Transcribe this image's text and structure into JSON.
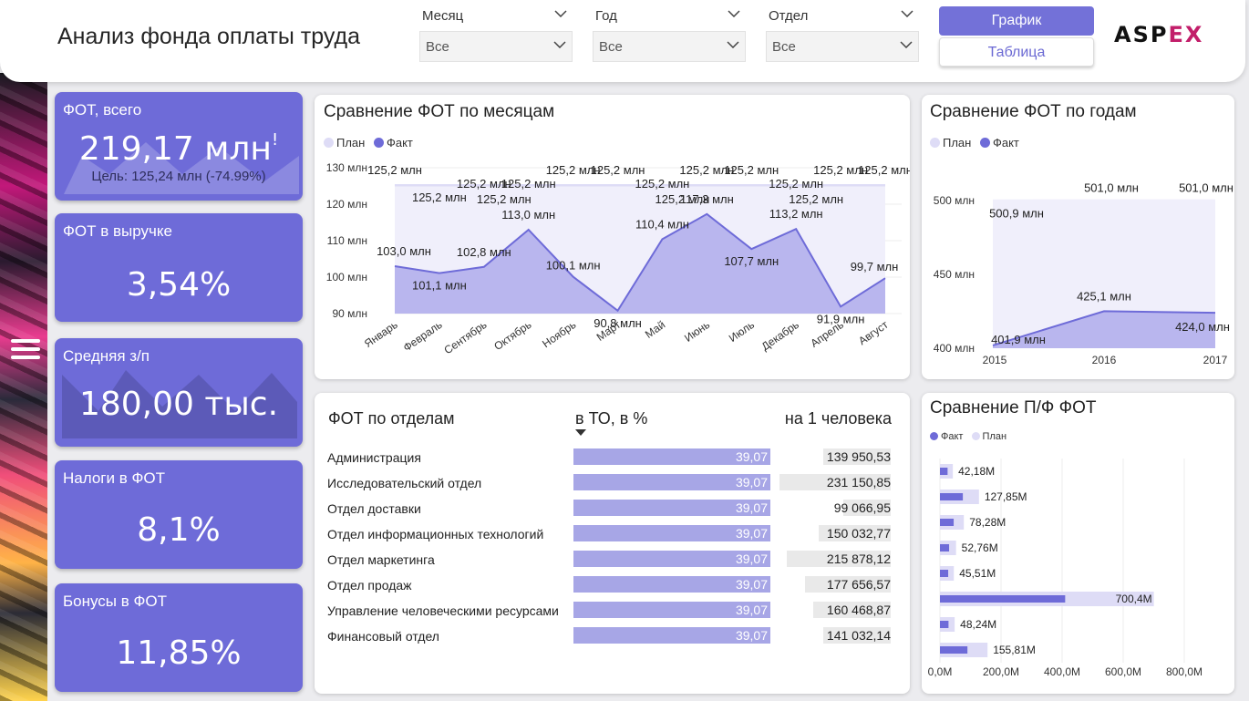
{
  "header": {
    "title": "Анализ фонда оплаты труда",
    "filters": [
      {
        "label": "Месяц",
        "value": "Все"
      },
      {
        "label": "Год",
        "value": "Все"
      },
      {
        "label": "Отдел",
        "value": "Все"
      }
    ],
    "graph_button": "График",
    "table_button": "Таблица",
    "logo_main": "ASP",
    "logo_accent": "EX"
  },
  "kpis": [
    {
      "label": "ФОТ, всего",
      "value": "219,17 млн",
      "sub": "Цель: 125,24 млн (-74.99%)",
      "alert": "!"
    },
    {
      "label": "ФОТ в выручке",
      "value": "3,54%"
    },
    {
      "label": "Средняя з/п",
      "value": "180,00 тыс."
    },
    {
      "label": "Налоги в ФОТ",
      "value": "8,1%"
    },
    {
      "label": "Бонусы в ФОТ",
      "value": "11,85%"
    }
  ],
  "colors": {
    "accent": "#6e6bd8",
    "plan": "#dedcf6",
    "fact": "#6e6bd8",
    "fact_area": "#b9b6ee"
  },
  "chart_data": [
    {
      "id": "monthly",
      "type": "area",
      "title": "Сравнение ФОТ по месяцам",
      "legend": [
        "План",
        "Факт"
      ],
      "categories": [
        "Январь",
        "Февраль",
        "Сентябрь",
        "Октябрь",
        "Ноябрь",
        "Март",
        "Май",
        "Июнь",
        "Июль",
        "Декабрь",
        "Апрель",
        "Август"
      ],
      "series": [
        {
          "name": "План",
          "values": [
            125.2,
            125.2,
            125.2,
            125.2,
            125.2,
            125.2,
            125.2,
            125.2,
            125.2,
            125.2,
            125.2,
            125.2
          ],
          "labels": [
            "125,2 млн",
            "125,2 млн",
            "125,2 млн",
            "125,2 млн",
            "125,2 млн",
            "125,2 млн",
            "125,2 млн",
            "125,2 млн",
            "125,2 млн",
            "125,2 млн",
            "125,2 млн",
            "125,2 млн"
          ]
        },
        {
          "name": "Факт",
          "values": [
            103.0,
            101.1,
            102.8,
            113.0,
            100.1,
            90.8,
            110.4,
            117.3,
            107.7,
            113.2,
            91.9,
            99.7
          ],
          "labels": [
            "103,0 млн",
            "101,1 млн",
            "102,8 млн",
            "113,0 млн",
            "100,1 млн",
            "90,8 млн",
            "110,4 млн",
            "117,3 млн",
            "107,7 млн",
            "113,2 млн",
            "91,9 млн",
            "99,7 млн"
          ]
        }
      ],
      "yticks": [
        "90 млн",
        "100 млн",
        "110 млн",
        "120 млн",
        "130 млн"
      ],
      "ylim": [
        90,
        130
      ]
    },
    {
      "id": "yearly",
      "type": "area",
      "title": "Сравнение ФОТ по годам",
      "legend": [
        "План",
        "Факт"
      ],
      "categories": [
        "2015",
        "2016",
        "2017"
      ],
      "series": [
        {
          "name": "План",
          "values": [
            500.9,
            501.0,
            501.0
          ],
          "labels": [
            "500,9 млн",
            "501,0 млн",
            "501,0 млн"
          ]
        },
        {
          "name": "Факт",
          "values": [
            401.9,
            425.1,
            424.0
          ],
          "labels": [
            "401,9 млн",
            "425,1 млн",
            "424,0 млн"
          ]
        }
      ],
      "yticks": [
        "400 млн",
        "450 млн",
        "500 млн"
      ],
      "ylim": [
        400,
        510
      ]
    },
    {
      "id": "pf",
      "type": "bar",
      "title": "Сравнение П/Ф ФОТ",
      "legend": [
        "Факт",
        "План"
      ],
      "categories": [
        "Администрация",
        "Исследовательский отдел",
        "Отдел доставки",
        "Отдел информационных технологий",
        "Отдел маркетинга",
        "Отдел продаж",
        "Управление человеческими ресурсами",
        "Финансовый отдел"
      ],
      "series": [
        {
          "name": "Факт",
          "values": [
            25,
            75,
            45,
            30,
            27,
            410,
            28,
            90
          ]
        },
        {
          "name": "План",
          "values": [
            42.18,
            127.85,
            78.28,
            52.76,
            45.51,
            700.4,
            48.24,
            155.81
          ],
          "labels": [
            "42,18M",
            "127,85M",
            "78,28M",
            "52,76M",
            "45,51M",
            "700,4M",
            "48,24M",
            "155,81M"
          ]
        }
      ],
      "xticks": [
        "0,0M",
        "200,0M",
        "400,0M",
        "600,0M",
        "800,0M"
      ],
      "xlim": [
        0,
        800
      ]
    },
    {
      "id": "departments",
      "type": "table",
      "title": "ФОТ по отделам",
      "columns": [
        "в ТО, в %",
        "на 1 человека"
      ],
      "rows": [
        {
          "name": "Администрация",
          "share": 39.07,
          "share_label": "39,07",
          "per_person": 139950.53,
          "per_person_label": "139 950,53"
        },
        {
          "name": "Исследовательский отдел",
          "share": 39.07,
          "share_label": "39,07",
          "per_person": 231150.85,
          "per_person_label": "231 150,85"
        },
        {
          "name": "Отдел доставки",
          "share": 39.07,
          "share_label": "39,07",
          "per_person": 99066.95,
          "per_person_label": "99 066,95"
        },
        {
          "name": "Отдел информационных технологий",
          "share": 39.07,
          "share_label": "39,07",
          "per_person": 150032.77,
          "per_person_label": "150 032,77"
        },
        {
          "name": "Отдел маркетинга",
          "share": 39.07,
          "share_label": "39,07",
          "per_person": 215878.12,
          "per_person_label": "215 878,12"
        },
        {
          "name": "Отдел продаж",
          "share": 39.07,
          "share_label": "39,07",
          "per_person": 177656.57,
          "per_person_label": "177 656,57"
        },
        {
          "name": "Управление человеческими ресурсами",
          "share": 39.07,
          "share_label": "39,07",
          "per_person": 160468.87,
          "per_person_label": "160 468,87"
        },
        {
          "name": "Финансовый отдел",
          "share": 39.07,
          "share_label": "39,07",
          "per_person": 141032.14,
          "per_person_label": "141 032,14"
        }
      ]
    }
  ]
}
